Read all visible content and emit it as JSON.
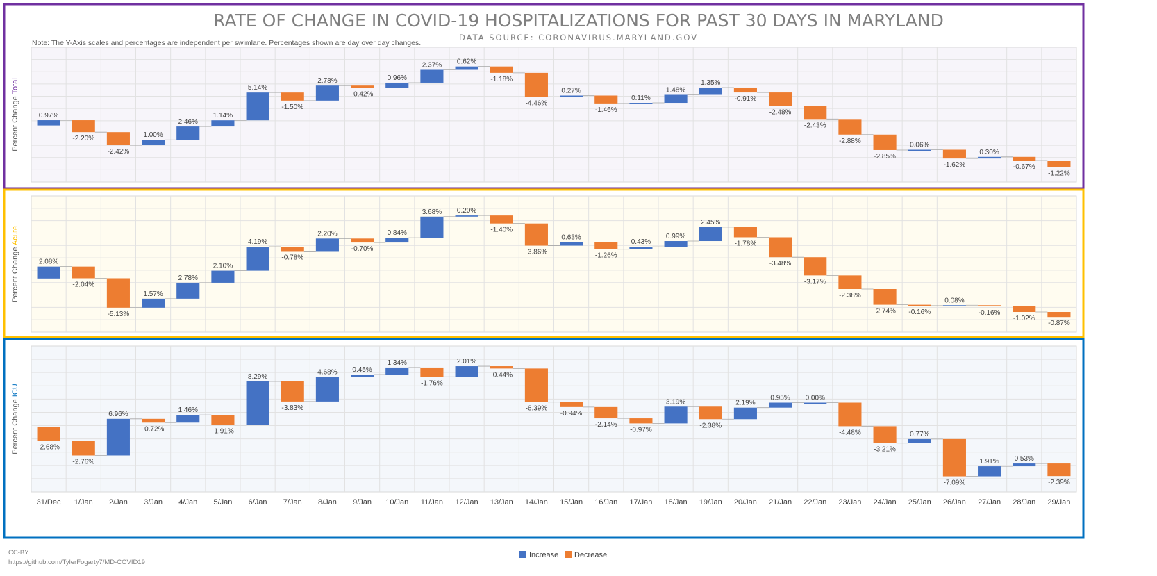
{
  "title": "RATE OF CHANGE IN COVID-19 HOSPITALIZATIONS FOR PAST 30 DAYS IN MARYLAND",
  "subtitle": "DATA SOURCE: CORONAVIRUS.MARYLAND.GOV",
  "note": "Note: The Y-Axis scales and percentages are independent per swimlane. Percentages shown are day over day changes.",
  "credit": [
    "CC-BY",
    "https://github.com/TylerFogarty7/MD-COVID19"
  ],
  "colors": {
    "increase": "#4472c4",
    "decrease": "#ed7d31"
  },
  "chart_data": {
    "type": "waterfall",
    "categories": [
      "31/Dec",
      "1/Jan",
      "2/Jan",
      "3/Jan",
      "4/Jan",
      "5/Jan",
      "6/Jan",
      "7/Jan",
      "8/Jan",
      "9/Jan",
      "10/Jan",
      "11/Jan",
      "12/Jan",
      "13/Jan",
      "14/Jan",
      "15/Jan",
      "16/Jan",
      "17/Jan",
      "18/Jan",
      "19/Jan",
      "20/Jan",
      "21/Jan",
      "22/Jan",
      "23/Jan",
      "24/Jan",
      "25/Jan",
      "26/Jan",
      "27/Jan",
      "28/Jan",
      "29/Jan"
    ],
    "legend": {
      "position": "bottom",
      "entries": [
        "Increase",
        "Decrease"
      ]
    },
    "ylabel_prefix": "Percent Change",
    "grid": true,
    "panels": [
      {
        "name": "Total",
        "color": "#7030a0",
        "bg": "#f7f5fa",
        "values": [
          0.97,
          -2.2,
          -2.42,
          1.0,
          2.46,
          1.14,
          5.14,
          -1.5,
          2.78,
          -0.42,
          0.96,
          2.37,
          0.62,
          -1.18,
          -4.46,
          0.27,
          -1.46,
          0.11,
          1.48,
          1.35,
          -0.91,
          -2.48,
          -2.43,
          -2.88,
          -2.85,
          0.06,
          -1.62,
          0.3,
          -0.67,
          -1.22
        ],
        "labels": [
          "0.97%",
          "-2.20%",
          "-2.42%",
          "1.00%",
          "2.46%",
          "1.14%",
          "5.14%",
          "-1.50%",
          "2.78%",
          "-0.42%",
          "0.96%",
          "2.37%",
          "0.62%",
          "-1.18%",
          "-4.46%",
          "0.27%",
          "-1.46%",
          "0.11%",
          "1.48%",
          "1.35%",
          "-0.91%",
          "-2.48%",
          "-2.43%",
          "-2.88%",
          "-2.85%",
          "0.06%",
          "-1.62%",
          "0.30%",
          "-0.67%",
          "-1.22%"
        ]
      },
      {
        "name": "Acute",
        "color": "#ffc000",
        "bg": "#fffcf0",
        "values": [
          2.08,
          -2.04,
          -5.13,
          1.57,
          2.78,
          2.1,
          4.19,
          -0.78,
          2.2,
          -0.7,
          0.84,
          3.68,
          0.2,
          -1.4,
          -3.86,
          0.63,
          -1.26,
          0.43,
          0.99,
          2.45,
          -1.78,
          -3.48,
          -3.17,
          -2.38,
          -2.74,
          -0.16,
          0.08,
          -0.16,
          -1.02,
          -0.87
        ],
        "labels": [
          "2.08%",
          "-2.04%",
          "-5.13%",
          "1.57%",
          "2.78%",
          "2.10%",
          "4.19%",
          "-0.78%",
          "2.20%",
          "-0.70%",
          "0.84%",
          "3.68%",
          "0.20%",
          "-1.40%",
          "-3.86%",
          "0.63%",
          "-1.26%",
          "0.43%",
          "0.99%",
          "2.45%",
          "-1.78%",
          "-3.48%",
          "-3.17%",
          "-2.38%",
          "-2.74%",
          "-0.16%",
          "0.08%",
          "-0.16%",
          "-1.02%",
          "-0.87%"
        ]
      },
      {
        "name": "ICU",
        "color": "#0070c0",
        "bg": "#f4f7fb",
        "values": [
          -2.68,
          -2.76,
          6.96,
          -0.72,
          1.46,
          -1.91,
          8.29,
          -3.83,
          4.68,
          0.45,
          1.34,
          -1.76,
          2.01,
          -0.44,
          -6.39,
          -0.94,
          -2.14,
          -0.97,
          3.19,
          -2.38,
          2.19,
          0.95,
          0.0,
          -4.48,
          -3.21,
          0.77,
          -7.09,
          1.91,
          0.53,
          -2.39
        ],
        "labels": [
          "-2.68%",
          "-2.76%",
          "6.96%",
          "-0.72%",
          "1.46%",
          "-1.91%",
          "8.29%",
          "-3.83%",
          "4.68%",
          "0.45%",
          "1.34%",
          "-1.76%",
          "2.01%",
          "-0.44%",
          "-6.39%",
          "-0.94%",
          "-2.14%",
          "-0.97%",
          "3.19%",
          "-2.38%",
          "2.19%",
          "0.95%",
          "0.00%",
          "-4.48%",
          "-3.21%",
          "0.77%",
          "-7.09%",
          "1.91%",
          "0.53%",
          "-2.39%"
        ]
      }
    ]
  }
}
